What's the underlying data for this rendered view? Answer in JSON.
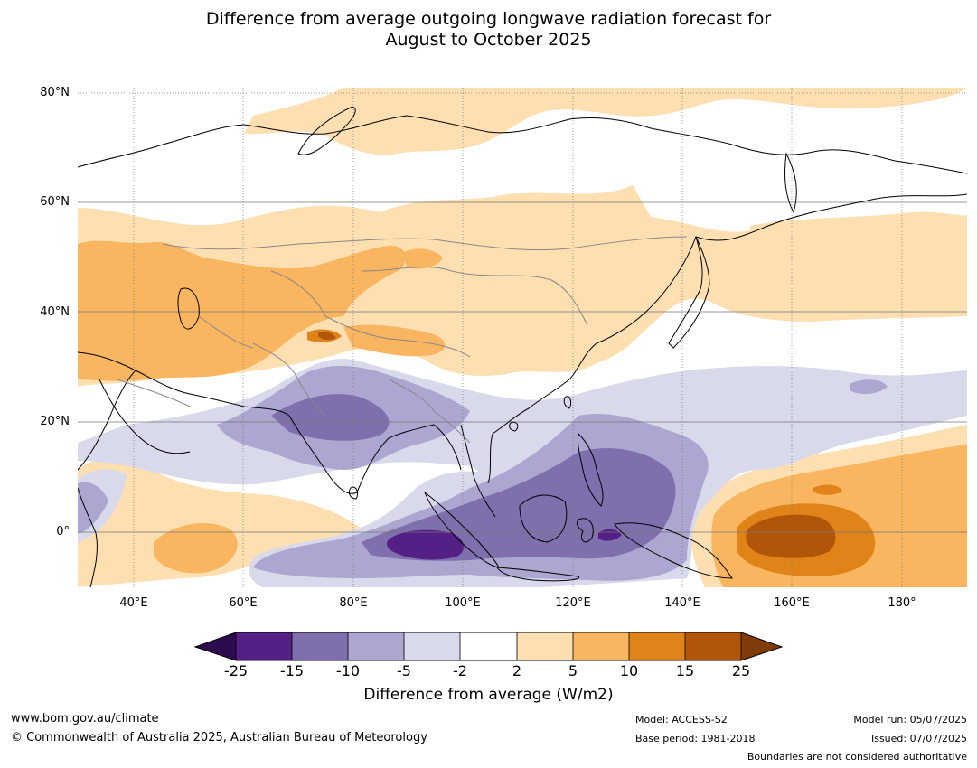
{
  "title": {
    "line1": "Difference from average outgoing longwave radiation forecast for",
    "line2": "August to October 2025"
  },
  "map": {
    "lat_labels": [
      "80°N",
      "60°N",
      "40°N",
      "20°N",
      "0°"
    ],
    "lon_labels": [
      "40°E",
      "60°E",
      "80°E",
      "100°E",
      "120°E",
      "140°E",
      "160°E",
      "180°"
    ],
    "colors": {
      "lt_m25": "#2d0b4f",
      "m25_m15": "#542085",
      "m15_m10": "#7f6fad",
      "m10_m5": "#aca6d1",
      "m5_m2": "#d9d9ec",
      "m2_2": "#ffffff",
      "p2_5": "#fddfb2",
      "p5_10": "#f9b560",
      "p10_15": "#e08319",
      "p15_25": "#b15509",
      "gt_25": "#7f3b08"
    }
  },
  "colorbar": {
    "ticks": [
      "-25",
      "-15",
      "-10",
      "-5",
      "-2",
      "2",
      "5",
      "10",
      "15",
      "25"
    ],
    "label": "Difference from average (W/m2)"
  },
  "footer": {
    "website": "www.bom.gov.au/climate",
    "copyright": "© Commonwealth of Australia 2025, Australian Bureau of Meteorology",
    "model": "Model: ACCESS-S2",
    "base_period": "Base period: 1981-2018",
    "model_run": "Model run: 05/07/2025",
    "issued": "Issued: 07/07/2025",
    "disclaimer": "Boundaries are not considered authoritative"
  }
}
